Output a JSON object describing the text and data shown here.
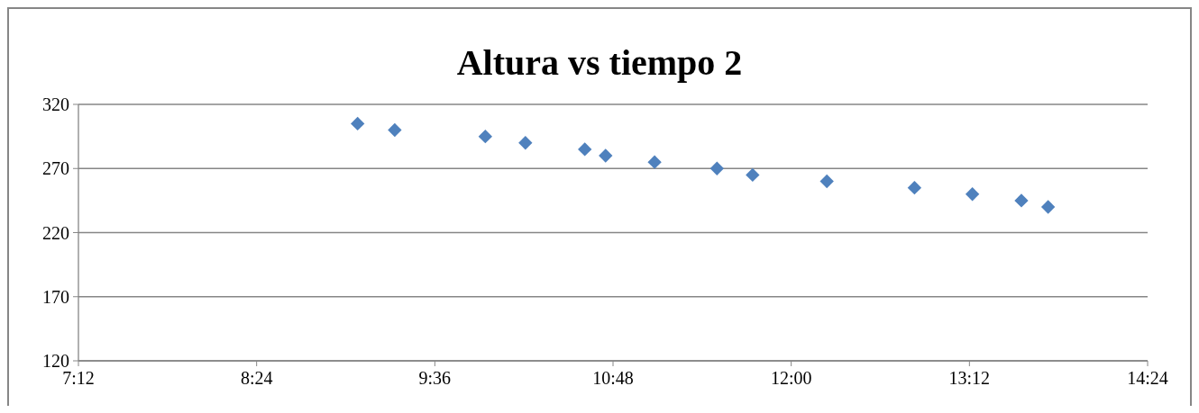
{
  "chart_data": {
    "type": "scatter",
    "title": "Altura vs tiempo 2",
    "x": [
      9.08,
      9.33,
      9.94,
      10.21,
      10.61,
      10.75,
      11.08,
      11.5,
      11.74,
      12.24,
      12.83,
      13.22,
      13.55,
      13.73
    ],
    "values": [
      305,
      300,
      295,
      290,
      285,
      280,
      275,
      270,
      265,
      260,
      255,
      250,
      245,
      240
    ],
    "color": "#4f81bd",
    "marker": "diamond",
    "grid": "y",
    "xlim": [
      7.2,
      14.4
    ],
    "xticks": [
      {
        "value": 7.2,
        "label": "7:12"
      },
      {
        "value": 8.4,
        "label": "8:24"
      },
      {
        "value": 9.6,
        "label": "9:36"
      },
      {
        "value": 10.8,
        "label": "10:48"
      },
      {
        "value": 12,
        "label": "12:00"
      },
      {
        "value": 13.2,
        "label": "13:12"
      },
      {
        "value": 14.4,
        "label": "14:24"
      }
    ],
    "ylim": [
      120,
      320
    ],
    "yticks": [
      120,
      170,
      220,
      270,
      320
    ]
  }
}
